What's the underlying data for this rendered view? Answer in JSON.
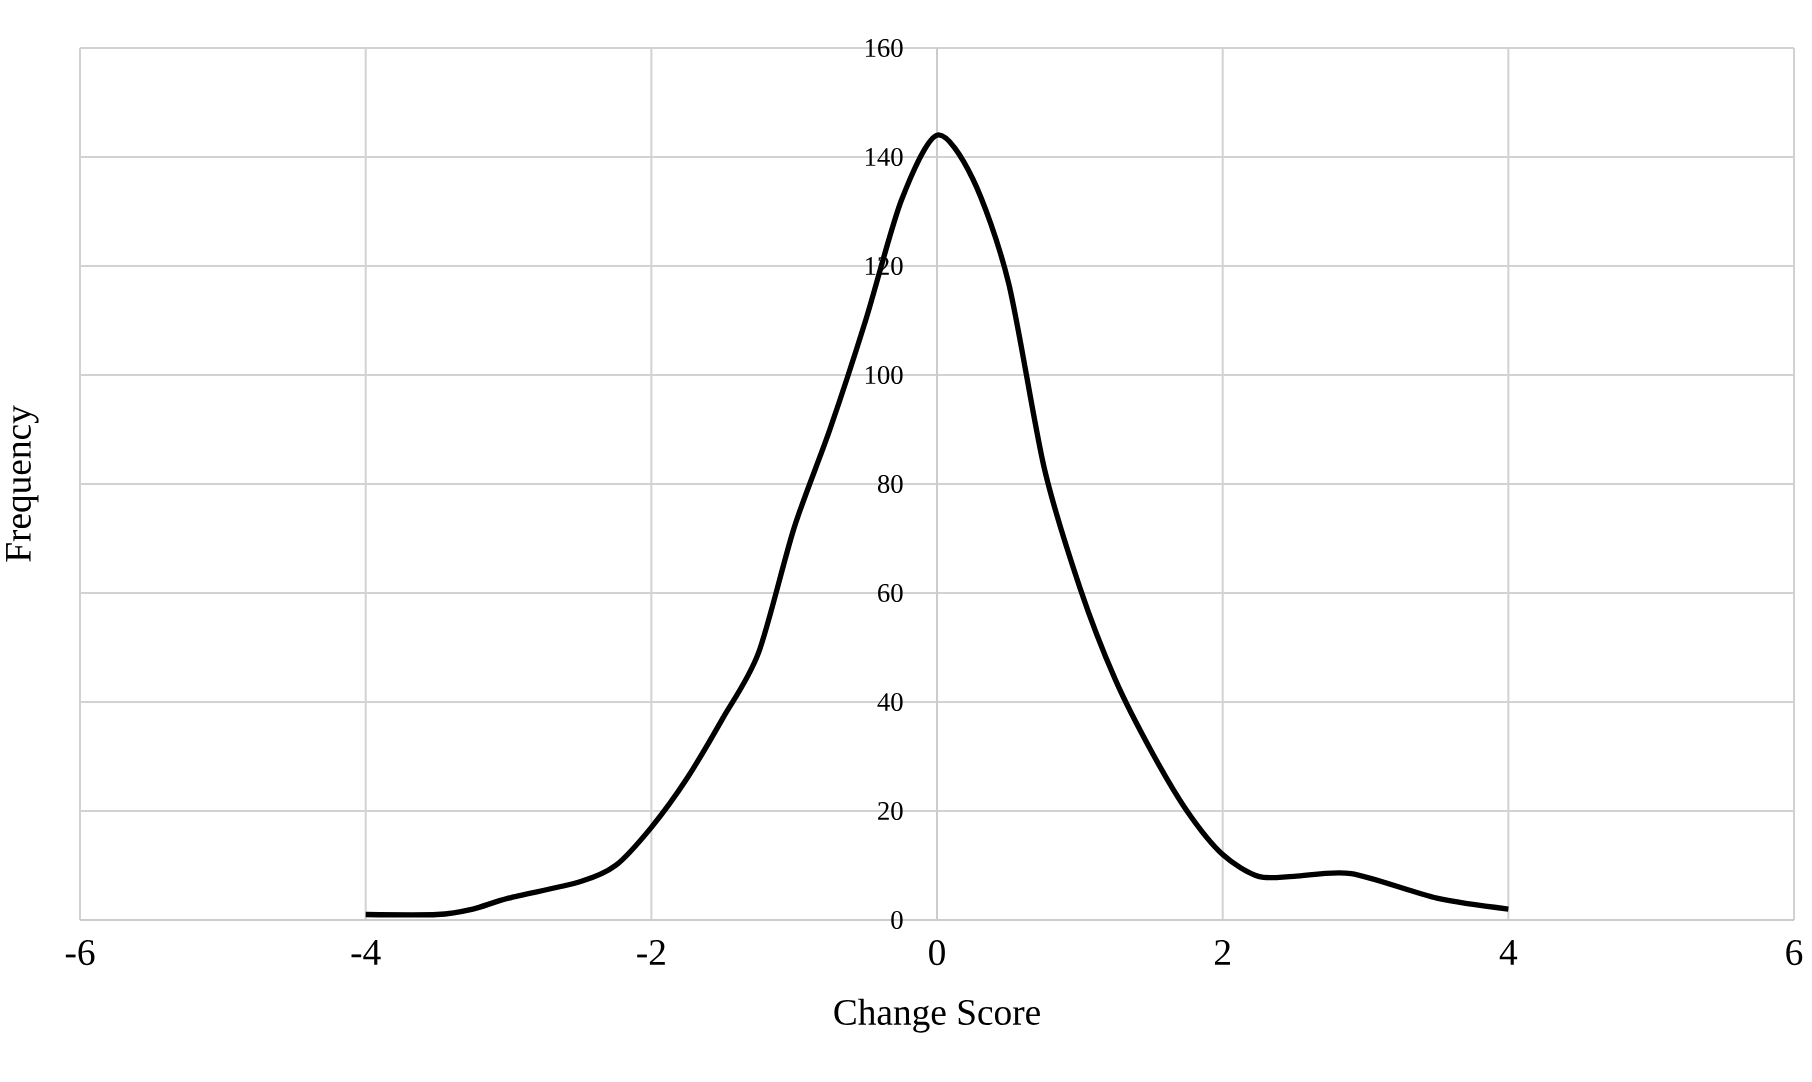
{
  "chart_data": {
    "type": "line",
    "xlabel": "Change Score",
    "ylabel": "Frequency",
    "x": [
      -4,
      -3.5,
      -3.25,
      -3,
      -2.5,
      -2.25,
      -2,
      -1.75,
      -1.5,
      -1.25,
      -1,
      -0.75,
      -0.5,
      -0.25,
      0,
      0.25,
      0.5,
      0.75,
      1,
      1.25,
      1.5,
      1.75,
      2,
      2.25,
      2.5,
      2.9,
      3.5,
      4
    ],
    "series": [
      {
        "color": "#000000",
        "values": [
          1,
          1,
          2,
          4,
          7,
          10,
          17,
          26,
          37,
          49,
          72,
          90,
          110,
          132,
          144,
          136,
          117,
          83,
          61,
          44,
          31,
          20,
          12,
          8,
          8,
          8.5,
          4,
          2
        ]
      }
    ],
    "xlim": [
      -6,
      6
    ],
    "ylim": [
      0,
      160
    ],
    "xticks": [
      -6,
      -4,
      -2,
      0,
      2,
      4,
      6
    ],
    "yticks": [
      0,
      20,
      40,
      60,
      80,
      100,
      120,
      140,
      160
    ],
    "grid": true,
    "line_style": "solid"
  }
}
